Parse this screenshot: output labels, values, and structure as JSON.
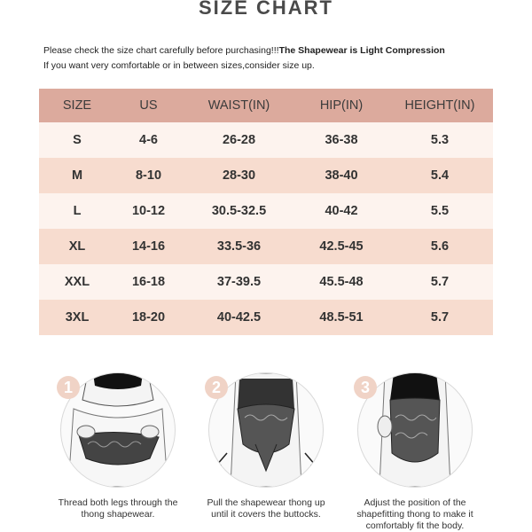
{
  "title": "SIZE CHART",
  "notice": {
    "line1_normal": "Please check the size chart carefully before purchasing!!!",
    "line1_bold": "The Shapewear is Light Compression",
    "line2": "If you want very comfortable or in between sizes,consider size up."
  },
  "table": {
    "headers": [
      "SIZE",
      "US",
      "WAIST(IN)",
      "HIP(IN)",
      "HEIGHT(IN)"
    ],
    "rows": [
      [
        "S",
        "4-6",
        "26-28",
        "36-38",
        "5.3"
      ],
      [
        "M",
        "8-10",
        "28-30",
        "38-40",
        "5.4"
      ],
      [
        "L",
        "10-12",
        "30.5-32.5",
        "40-42",
        "5.5"
      ],
      [
        "XL",
        "14-16",
        "33.5-36",
        "42.5-45",
        "5.6"
      ],
      [
        "XXL",
        "16-18",
        "37-39.5",
        "45.5-48",
        "5.7"
      ],
      [
        "3XL",
        "18-20",
        "40-42.5",
        "48.5-51",
        "5.7"
      ]
    ]
  },
  "steps": [
    {
      "number": "1",
      "caption": [
        "Thread both legs through the",
        "thong shapewear."
      ]
    },
    {
      "number": "2",
      "caption": [
        "Pull the shapewear thong up",
        "until it covers the buttocks."
      ]
    },
    {
      "number": "3",
      "caption": [
        "Adjust the position of the",
        "shapefitting thong to make it",
        "comfortably fit the body."
      ]
    }
  ],
  "colors": {
    "header_row": "#dcaa9d",
    "row_light": "#fdf3ee",
    "row_dark": "#f7dccf",
    "step_badge": "#f0d3c6"
  },
  "icons": [
    "garment-illustration",
    "step-number-badge",
    "arrow-icon"
  ]
}
